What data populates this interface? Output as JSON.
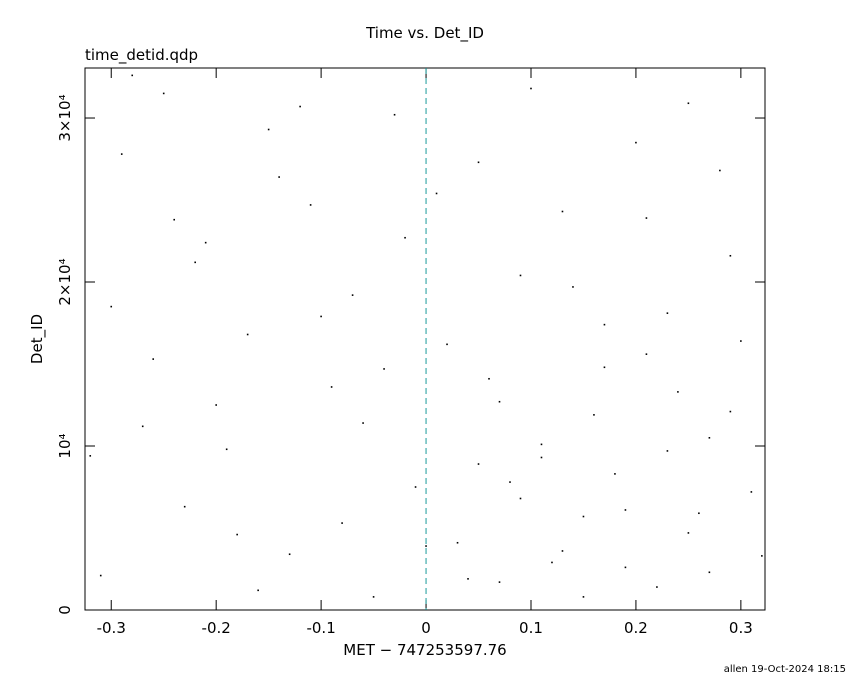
{
  "chart_data": {
    "type": "scatter",
    "title": "Time vs. Det_ID",
    "subtitle": "time_detid.qdp",
    "x_label": "MET − 747253597.76",
    "y_label": "Det_ID",
    "footer": "allen 19-Oct-2024 18:15",
    "color": "#000000",
    "vline": 0,
    "vline_color": "#1a9a9a",
    "xlim": [
      -0.325,
      0.323
    ],
    "ylim": [
      0,
      33050
    ],
    "xticks": [
      -0.3,
      -0.2,
      -0.1,
      0,
      0.1,
      0.2,
      0.3
    ],
    "yticks": [
      0,
      {
        "value": 10000,
        "label": "10⁴"
      },
      {
        "value": 20000,
        "label": "2×10⁴"
      },
      {
        "value": 30000,
        "label": "3×10⁴"
      }
    ],
    "x": [
      -0.31,
      -0.29,
      -0.27,
      -0.25,
      -0.23,
      -0.21,
      -0.19,
      -0.17,
      -0.15,
      -0.13,
      -0.11,
      -0.09,
      -0.07,
      -0.05,
      -0.03,
      -0.01,
      0.01,
      0.03,
      0.05,
      0.07,
      0.09,
      0.11,
      0.13,
      0.15,
      0.17,
      0.19,
      0.21,
      0.23,
      0.25,
      0.27,
      0.29,
      0.31,
      -0.3,
      -0.26,
      -0.22,
      -0.18,
      -0.14,
      -0.1,
      -0.06,
      -0.02,
      0.02,
      0.04,
      0.06,
      0.08,
      0.1,
      0.12,
      0.14,
      0.16,
      0.18,
      0.2,
      0.22,
      0.24,
      0.26,
      0.28,
      0.3,
      0.32,
      -0.32,
      -0.28,
      -0.24,
      -0.2,
      -0.16,
      -0.12,
      -0.08,
      -0.04,
      0.0,
      0.05,
      0.07,
      0.09,
      0.11,
      0.13,
      0.15,
      0.17,
      0.19,
      0.21,
      0.23,
      0.25,
      0.27,
      0.29
    ],
    "values": [
      2100,
      27800,
      11200,
      31500,
      6300,
      22400,
      9800,
      16800,
      29300,
      3400,
      24700,
      13600,
      19200,
      800,
      30200,
      7500,
      25400,
      4100,
      8900,
      12700,
      6800,
      9300,
      3600,
      5700,
      14800,
      2600,
      23900,
      18100,
      4700,
      10500,
      21600,
      7200,
      18500,
      15300,
      21200,
      4600,
      26400,
      17900,
      11400,
      22700,
      16200,
      1900,
      14100,
      7800,
      31800,
      2900,
      19700,
      11900,
      8300,
      28500,
      1400,
      13300,
      5900,
      26800,
      16400,
      3300,
      9400,
      32600,
      23800,
      12500,
      1200,
      30700,
      5300,
      14700,
      3900,
      27300,
      1700,
      20400,
      10100,
      24300,
      800,
      17400,
      6100,
      15600,
      9700,
      30900,
      2300,
      12100
    ]
  }
}
